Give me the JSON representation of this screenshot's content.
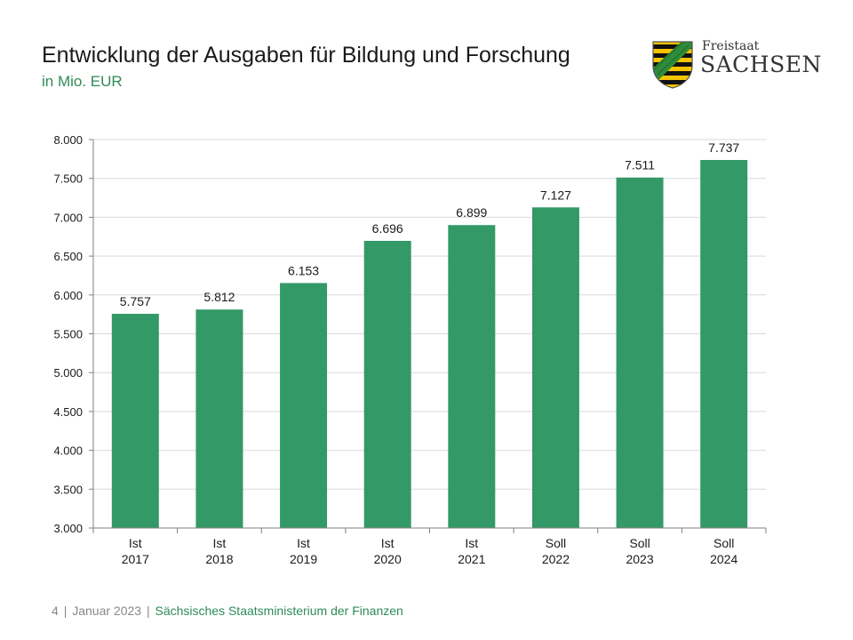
{
  "header": {
    "title": "Entwicklung der Ausgaben für Bildung und Forschung",
    "subtitle": "in Mio. EUR"
  },
  "logo": {
    "line1": "Freistaat",
    "line2": "SACHSEN",
    "icon": "saxony-coat-of-arms-icon"
  },
  "footer": {
    "page": "4",
    "date": "Januar 2023",
    "ministry": "Sächsisches Staatsministerium der Finanzen"
  },
  "colors": {
    "bar": "#339966",
    "accent": "#2e8b57"
  },
  "chart_data": {
    "type": "bar",
    "categories": [
      [
        "Ist",
        "2017"
      ],
      [
        "Ist",
        "2018"
      ],
      [
        "Ist",
        "2019"
      ],
      [
        "Ist",
        "2020"
      ],
      [
        "Ist",
        "2021"
      ],
      [
        "Soll",
        "2022"
      ],
      [
        "Soll",
        "2023"
      ],
      [
        "Soll",
        "2024"
      ]
    ],
    "values": [
      5757,
      5812,
      6153,
      6696,
      6899,
      7127,
      7511,
      7737
    ],
    "value_labels": [
      "5.757",
      "5.812",
      "6.153",
      "6.696",
      "6.899",
      "7.127",
      "7.511",
      "7.737"
    ],
    "y_ticks": [
      3000,
      3500,
      4000,
      4500,
      5000,
      5500,
      6000,
      6500,
      7000,
      7500,
      8000
    ],
    "y_tick_labels": [
      "3.000",
      "3.500",
      "4.000",
      "4.500",
      "5.000",
      "5.500",
      "6.000",
      "6.500",
      "7.000",
      "7.500",
      "8.000"
    ],
    "ylim": [
      3000,
      8000
    ],
    "grid": true,
    "legend": "none"
  }
}
